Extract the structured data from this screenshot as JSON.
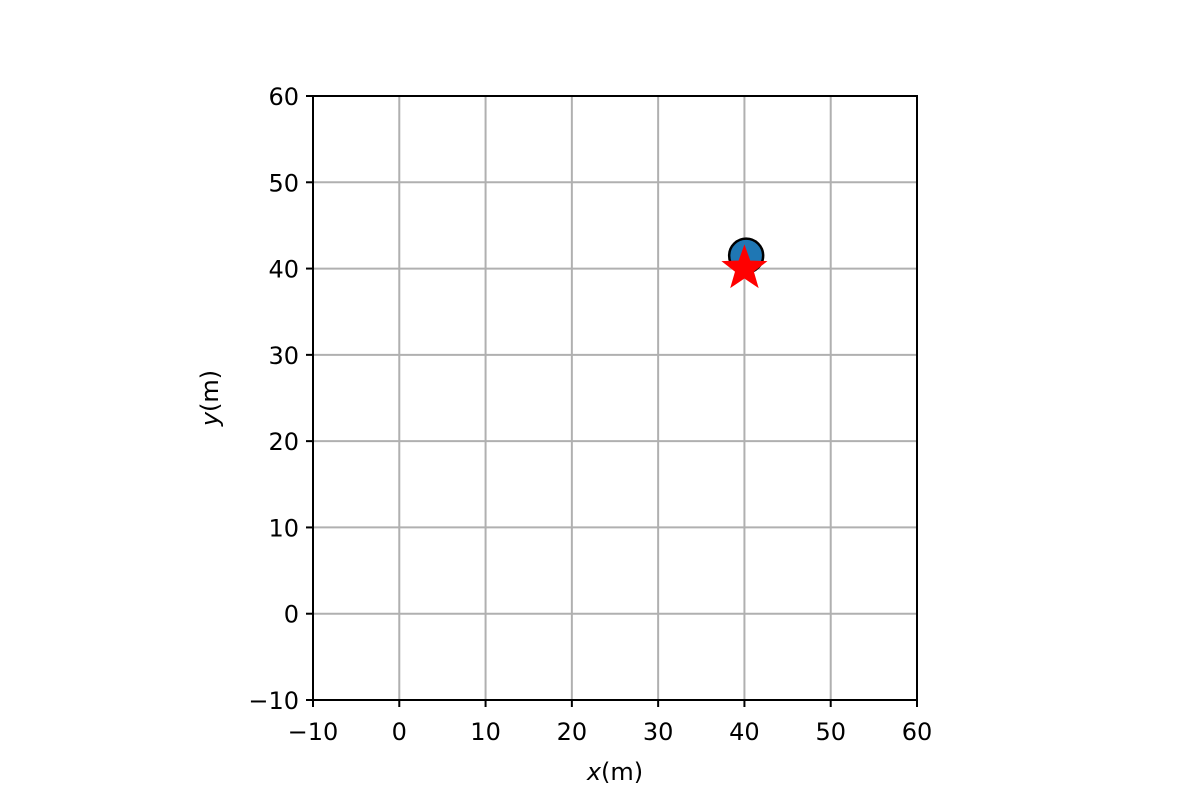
{
  "chart_data": {
    "type": "scatter",
    "title": "",
    "xlabel": "x(m)",
    "ylabel": "y(m)",
    "xlabel_var": "x",
    "xlabel_unit": "(m)",
    "ylabel_var": "y",
    "ylabel_unit": "(m)",
    "xlim": [
      -10,
      60
    ],
    "ylim": [
      -10,
      60
    ],
    "xticks": [
      -10,
      0,
      10,
      20,
      30,
      40,
      50,
      60
    ],
    "yticks": [
      -10,
      0,
      10,
      20,
      30,
      40,
      50,
      60
    ],
    "xtick_labels": [
      "−10",
      "0",
      "10",
      "20",
      "30",
      "40",
      "50",
      "60"
    ],
    "ytick_labels": [
      "−10",
      "0",
      "10",
      "20",
      "30",
      "40",
      "50",
      "60"
    ],
    "grid": true,
    "legend": "none",
    "series": [
      {
        "marker": "circle",
        "color": "#1f77b4",
        "edgecolor": "#000000",
        "points": [
          {
            "x": 40.2,
            "y": 41.5
          }
        ]
      },
      {
        "marker": "star",
        "color": "#ff0000",
        "points": [
          {
            "x": 40,
            "y": 40
          }
        ]
      }
    ]
  }
}
